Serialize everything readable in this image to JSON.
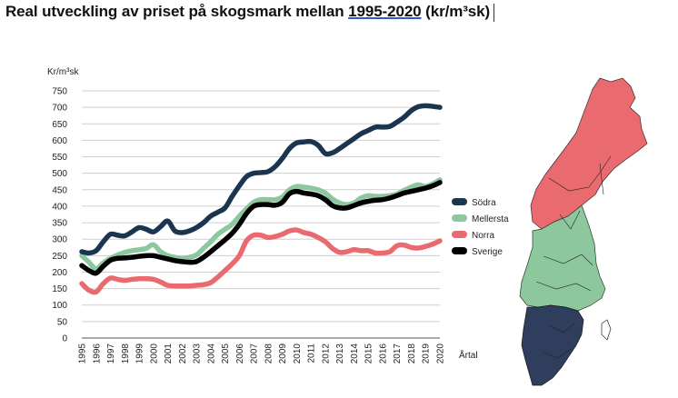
{
  "title": {
    "before": "Real utveckling av priset på skogsmark mellan ",
    "years": "1995-2020",
    "after": " (kr/m³sk)"
  },
  "chart_data": {
    "type": "line",
    "ylabel": "Kr/m³sk",
    "xlabel": "Årtal",
    "ylim": [
      0,
      750
    ],
    "ytick_step": 50,
    "grid": "horizontal",
    "legend_position": "right",
    "x": [
      1995,
      1995.5,
      1996,
      1996.5,
      1997,
      1997.5,
      1998,
      1998.5,
      1999,
      1999.5,
      2000,
      2000.5,
      2001,
      2001.5,
      2002,
      2002.5,
      2003,
      2003.5,
      2004,
      2004.5,
      2005,
      2005.5,
      2006,
      2006.5,
      2007,
      2007.5,
      2008,
      2008.5,
      2009,
      2009.5,
      2010,
      2010.5,
      2011,
      2011.5,
      2012,
      2012.5,
      2013,
      2013.5,
      2014,
      2014.5,
      2015,
      2015.5,
      2016,
      2016.5,
      2017,
      2017.5,
      2018,
      2018.5,
      2019,
      2019.5,
      2020
    ],
    "xticks": [
      "1995",
      "1996",
      "1997",
      "1998",
      "1999",
      "2000",
      "2001",
      "2002",
      "2003",
      "2004",
      "2005",
      "2006",
      "2007",
      "2008",
      "2009",
      "2010",
      "2011",
      "2012",
      "2013",
      "2014",
      "2015",
      "2016",
      "2017",
      "2018",
      "2019",
      "2020"
    ],
    "series": [
      {
        "name": "Södra",
        "color": "#1b3551",
        "values": [
          262,
          258,
          265,
          292,
          315,
          312,
          310,
          322,
          335,
          330,
          322,
          338,
          355,
          325,
          320,
          325,
          335,
          350,
          370,
          382,
          395,
          430,
          462,
          490,
          500,
          502,
          505,
          520,
          545,
          575,
          592,
          595,
          596,
          585,
          560,
          562,
          575,
          590,
          605,
          620,
          630,
          640,
          640,
          642,
          655,
          670,
          690,
          702,
          705,
          703,
          700
        ]
      },
      {
        "name": "Mellersta",
        "color": "#8dc79e",
        "values": [
          250,
          230,
          210,
          228,
          242,
          252,
          260,
          265,
          268,
          272,
          283,
          262,
          250,
          245,
          242,
          245,
          252,
          272,
          292,
          315,
          330,
          345,
          370,
          392,
          412,
          420,
          420,
          420,
          428,
          450,
          460,
          458,
          455,
          450,
          440,
          422,
          410,
          405,
          410,
          425,
          432,
          430,
          430,
          432,
          437,
          448,
          458,
          465,
          460,
          468,
          480
        ]
      },
      {
        "name": "Norra",
        "color": "#e96b6f",
        "values": [
          165,
          145,
          140,
          165,
          182,
          178,
          175,
          178,
          180,
          180,
          178,
          170,
          160,
          158,
          158,
          158,
          160,
          162,
          168,
          185,
          205,
          225,
          250,
          295,
          312,
          312,
          305,
          308,
          315,
          325,
          328,
          320,
          315,
          305,
          292,
          272,
          260,
          262,
          268,
          265,
          265,
          258,
          258,
          262,
          280,
          282,
          275,
          273,
          278,
          285,
          295
        ]
      },
      {
        "name": "Sverige",
        "color": "#000000",
        "values": [
          220,
          205,
          197,
          218,
          236,
          242,
          243,
          245,
          248,
          250,
          250,
          245,
          240,
          235,
          232,
          230,
          232,
          245,
          262,
          280,
          298,
          318,
          345,
          378,
          400,
          405,
          405,
          403,
          412,
          438,
          445,
          440,
          437,
          432,
          420,
          402,
          395,
          395,
          402,
          410,
          415,
          418,
          420,
          425,
          432,
          440,
          445,
          450,
          455,
          462,
          472
        ]
      }
    ]
  },
  "map": {
    "regions": [
      {
        "name": "norra",
        "color": "#e96b6f"
      },
      {
        "name": "mellersta",
        "color": "#8dc79e"
      },
      {
        "name": "sodra",
        "color": "#2e3e5c"
      }
    ]
  }
}
